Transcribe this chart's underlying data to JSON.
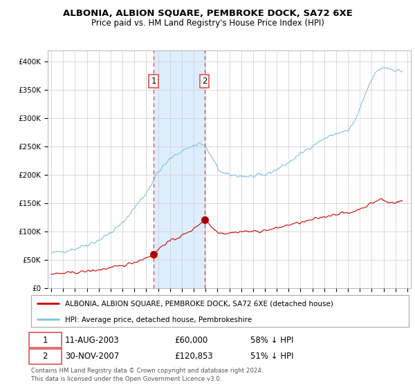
{
  "title": "ALBONIA, ALBION SQUARE, PEMBROKE DOCK, SA72 6XE",
  "subtitle": "Price paid vs. HM Land Registry's House Price Index (HPI)",
  "legend_line1": "ALBONIA, ALBION SQUARE, PEMBROKE DOCK, SA72 6XE (detached house)",
  "legend_line2": "HPI: Average price, detached house, Pembrokeshire",
  "annotation1_label": "1",
  "annotation1_date": "11-AUG-2003",
  "annotation1_price": "£60,000",
  "annotation1_hpi": "58% ↓ HPI",
  "annotation1_year": 2003.614,
  "annotation1_value": 60000,
  "annotation2_label": "2",
  "annotation2_date": "30-NOV-2007",
  "annotation2_price": "£120,853",
  "annotation2_hpi": "51% ↓ HPI",
  "annotation2_year": 2007.915,
  "annotation2_value": 120853,
  "footer": "Contains HM Land Registry data © Crown copyright and database right 2024.\nThis data is licensed under the Open Government Licence v3.0.",
  "hpi_color": "#7fbfdf",
  "price_color": "#cc0000",
  "shading_color": "#ddeeff",
  "annotation_line_color": "#e05050",
  "ylim_min": 0,
  "ylim_max": 420000,
  "xlim_min": 1994.7,
  "xlim_max": 2025.3,
  "xticks": [
    1995,
    1996,
    1997,
    1998,
    1999,
    2000,
    2001,
    2002,
    2003,
    2004,
    2005,
    2006,
    2007,
    2008,
    2009,
    2010,
    2011,
    2012,
    2013,
    2014,
    2015,
    2016,
    2017,
    2018,
    2019,
    2020,
    2021,
    2022,
    2023,
    2024,
    2025
  ],
  "yticks": [
    0,
    50000,
    100000,
    150000,
    200000,
    250000,
    300000,
    350000,
    400000
  ]
}
